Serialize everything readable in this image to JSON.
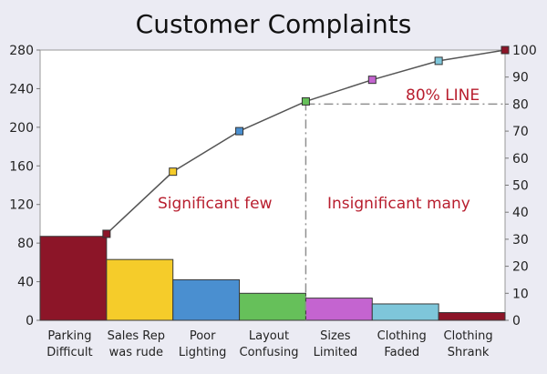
{
  "chart_data": {
    "type": "bar",
    "title": "Customer Complaints",
    "categories": [
      [
        "Parking",
        "Difficult"
      ],
      [
        "Sales Rep",
        "was rude"
      ],
      [
        "Poor",
        "Lighting"
      ],
      [
        "Layout",
        "Confusing"
      ],
      [
        "Sizes",
        "Limited"
      ],
      [
        "Clothing",
        "Faded"
      ],
      [
        "Clothing",
        "Shrank"
      ]
    ],
    "values": [
      87,
      63,
      42,
      28,
      23,
      17,
      8
    ],
    "bar_colors": [
      "#8c1528",
      "#f5cc2a",
      "#4a8fd0",
      "#66c05a",
      "#c464d0",
      "#7ec6da",
      "#8c1528"
    ],
    "cumulative_percent": [
      32,
      55,
      70,
      81,
      89,
      96,
      100
    ],
    "marker_colors": [
      "#8c1528",
      "#f5cc2a",
      "#4a8fd0",
      "#66c05a",
      "#c464d0",
      "#7ec6da",
      "#8c1528"
    ],
    "y_left": {
      "min": 0,
      "max": 280,
      "ticks": [
        0,
        40,
        80,
        120,
        160,
        200,
        240,
        280
      ]
    },
    "y_right": {
      "min": 0,
      "max": 100,
      "ticks": [
        0,
        10,
        20,
        30,
        40,
        50,
        60,
        70,
        80,
        90,
        100
      ]
    },
    "threshold_percent": 80,
    "annotations": {
      "line_label": "80% LINE",
      "left_region": "Significant few",
      "right_region": "Insignificant many"
    },
    "colors": {
      "annotation": "#b81e2e",
      "threshold_line": "#909090",
      "cumulative_line": "#555555",
      "background": "#ebebf3",
      "plot_background": "#ffffff"
    }
  }
}
